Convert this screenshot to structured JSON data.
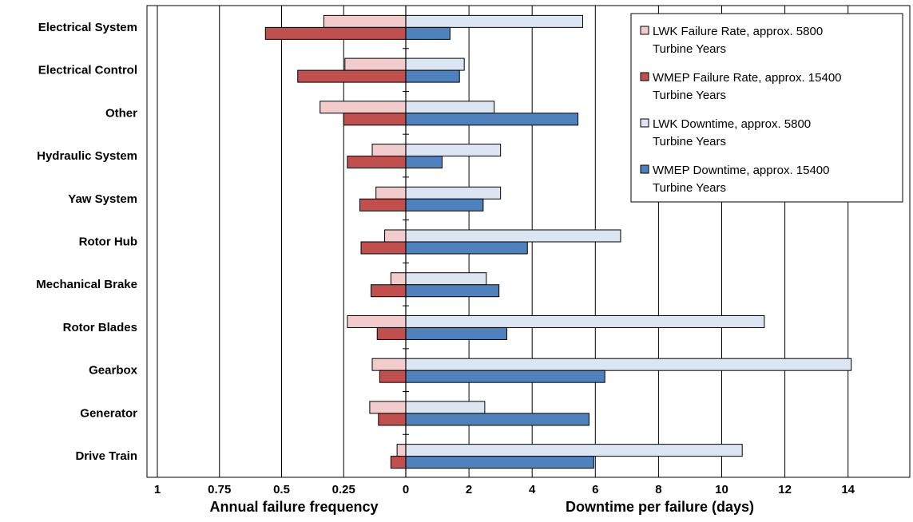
{
  "chart_data": {
    "type": "bar",
    "orientation": "horizontal",
    "categories": [
      "Electrical System",
      "Electrical Control",
      "Other",
      "Hydraulic System",
      "Yaw System",
      "Rotor Hub",
      "Mechanical Brake",
      "Rotor Blades",
      "Gearbox",
      "Generator",
      "Drive Train"
    ],
    "left_axis": {
      "label": "Annual failure frequency",
      "reversed": true,
      "range": [
        0,
        1
      ],
      "ticks": [
        1,
        0.75,
        0.5,
        0.25,
        0
      ],
      "tick_labels": [
        "1",
        "0.75",
        "0.5",
        "0.25",
        "0"
      ]
    },
    "right_axis": {
      "label": "Downtime per failure (days)",
      "range": [
        0,
        16
      ],
      "ticks": [
        0,
        2,
        4,
        6,
        8,
        10,
        12,
        14
      ],
      "tick_labels": [
        "0",
        "2",
        "4",
        "6",
        "8",
        "10",
        "12",
        "14"
      ]
    },
    "series": [
      {
        "name": "LWK Failure Rate, approx. 5800 Turbine Years",
        "side": "left",
        "color": "#f2cccc",
        "values": [
          0.33,
          0.245,
          0.345,
          0.135,
          0.12,
          0.085,
          0.06,
          0.235,
          0.135,
          0.145,
          0.035
        ]
      },
      {
        "name": "WMEP Failure Rate, approx. 15400 Turbine Years",
        "side": "left",
        "color": "#c0504d",
        "values": [
          0.565,
          0.435,
          0.25,
          0.235,
          0.185,
          0.18,
          0.14,
          0.115,
          0.105,
          0.11,
          0.06
        ]
      },
      {
        "name": "LWK Downtime, approx. 5800 Turbine Years",
        "side": "right",
        "color": "#dce6f2",
        "values": [
          5.6,
          1.85,
          2.8,
          3.0,
          3.0,
          6.8,
          2.55,
          11.35,
          14.1,
          2.5,
          10.65
        ]
      },
      {
        "name": "WMEP Downtime, approx. 15400 Turbine Years",
        "side": "right",
        "color": "#4f81bd",
        "values": [
          1.4,
          1.7,
          5.45,
          1.15,
          2.45,
          3.85,
          2.95,
          3.2,
          6.3,
          5.8,
          5.95
        ]
      }
    ],
    "grid": "vertical",
    "legend_position": "top-right"
  }
}
